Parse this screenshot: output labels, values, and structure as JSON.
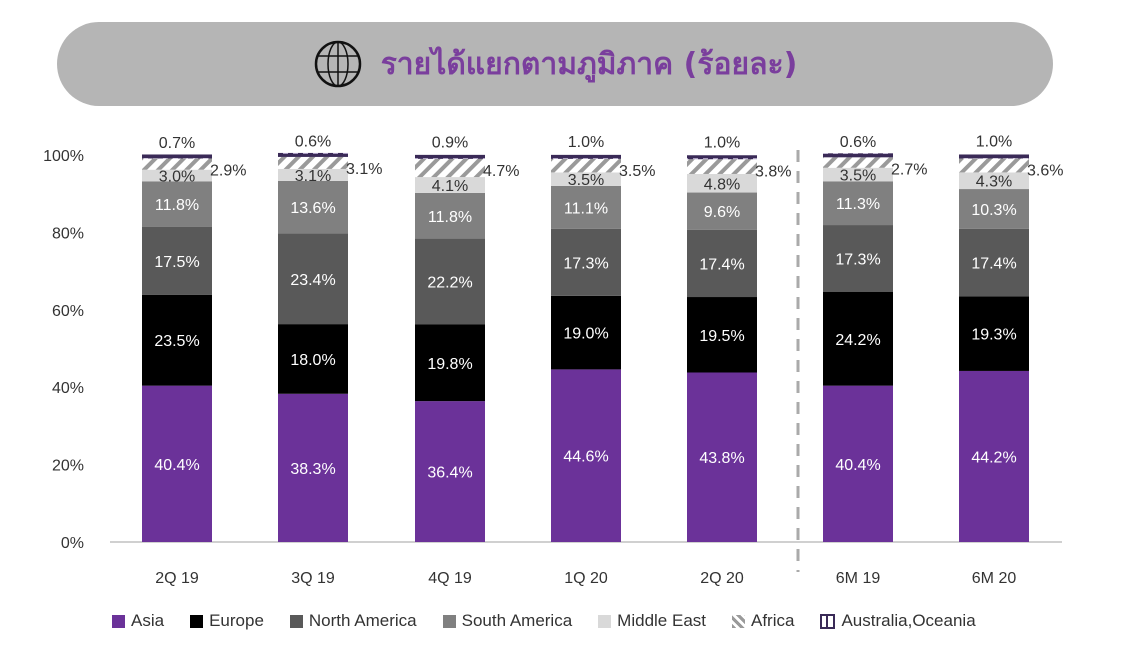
{
  "chart_data": {
    "type": "bar",
    "stacked": true,
    "title": "รายได้แยกตามภูมิภาค (ร้อยละ)",
    "title_icon": "globe-icon",
    "categories": [
      "2Q 19",
      "3Q 19",
      "4Q 19",
      "1Q 20",
      "2Q 20",
      "6M 19",
      "6M 20"
    ],
    "series": [
      {
        "name": "Asia",
        "color": "#6b3299",
        "values": [
          40.4,
          38.3,
          36.4,
          44.6,
          43.8,
          40.4,
          44.2
        ]
      },
      {
        "name": "Europe",
        "color": "#000000",
        "values": [
          23.5,
          18.0,
          19.8,
          19.0,
          19.5,
          24.2,
          19.3
        ]
      },
      {
        "name": "North America",
        "color": "#595959",
        "values": [
          17.5,
          23.4,
          22.2,
          17.3,
          17.4,
          17.3,
          17.4
        ]
      },
      {
        "name": "South America",
        "color": "#808080",
        "values": [
          11.8,
          13.6,
          11.8,
          11.1,
          9.6,
          11.3,
          10.3
        ]
      },
      {
        "name": "Middle East",
        "color": "#d9d9d9",
        "values": [
          3.0,
          3.1,
          4.1,
          3.5,
          4.8,
          3.5,
          4.3
        ]
      },
      {
        "name": "Africa",
        "color": "#9a9a9a",
        "values": [
          2.9,
          3.1,
          4.7,
          3.5,
          3.8,
          2.7,
          3.6
        ]
      },
      {
        "name": "Australia,Oceania",
        "color": "#3a2a57",
        "values": [
          0.7,
          0.6,
          0.9,
          1.0,
          1.0,
          0.6,
          1.0
        ]
      }
    ],
    "ylim": [
      0,
      100
    ],
    "yticks": [
      "0%",
      "20%",
      "40%",
      "60%",
      "80%",
      "100%"
    ],
    "legend": "bottom",
    "separator_after_category": "2Q 20"
  }
}
